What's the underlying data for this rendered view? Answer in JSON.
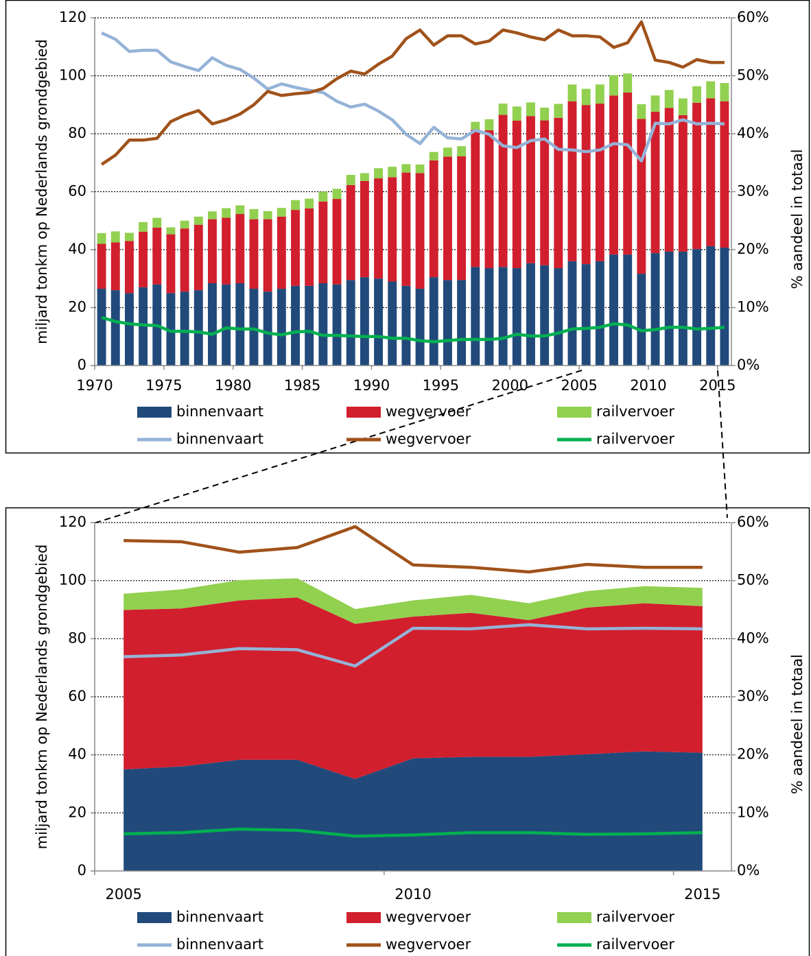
{
  "chart_data": [
    {
      "type": "bar",
      "stacked": true,
      "grid": true,
      "ylabel": "miljard tonkm op Nederlands grondgebied",
      "y2label": "% aandeel in totaal",
      "categories": [
        "1970",
        null,
        null,
        null,
        null,
        "1975",
        null,
        null,
        null,
        null,
        "1980",
        null,
        null,
        null,
        null,
        "1985",
        null,
        null,
        null,
        null,
        "1990",
        null,
        null,
        null,
        null,
        "1995",
        null,
        null,
        null,
        null,
        "2000",
        null,
        null,
        null,
        null,
        "2005",
        null,
        null,
        null,
        null,
        "2010",
        null,
        null,
        null,
        null,
        "2015"
      ],
      "ylim": [
        0,
        120
      ],
      "yticks": [
        0,
        20,
        40,
        60,
        80,
        100,
        120
      ],
      "y2lim": [
        0,
        60
      ],
      "y2ticks": [
        {
          "value": 0,
          "label": "0%"
        },
        {
          "value": 10,
          "label": "10%"
        },
        {
          "value": 20,
          "label": "20%"
        },
        {
          "value": 30,
          "label": "30%"
        },
        {
          "value": 40,
          "label": "40%"
        },
        {
          "value": 50,
          "label": "50%"
        },
        {
          "value": 60,
          "label": "60%"
        }
      ],
      "series": [
        {
          "name": "binnenvaart",
          "type": "bar",
          "color": "#214a7b",
          "values": [
            26.5,
            26,
            25,
            27,
            28,
            25,
            25.5,
            26,
            28.4,
            28,
            28.4,
            26.5,
            25.5,
            26.5,
            27.5,
            27.5,
            28.4,
            28,
            29.5,
            30.5,
            30,
            29,
            27.5,
            26.5,
            30.5,
            29.5,
            29.5,
            34,
            33.6,
            34,
            33.6,
            35.3,
            34.6,
            33.6,
            36,
            35,
            36,
            38.3,
            38.3,
            31.7,
            38.8,
            39.3,
            39.3,
            40.2,
            41.2,
            40.7
          ]
        },
        {
          "name": "wegvervoer",
          "type": "bar",
          "color": "#d11f2e",
          "values": [
            15.5,
            16.5,
            18,
            19.2,
            19.6,
            20.3,
            21.8,
            22.6,
            22.1,
            23,
            23.9,
            24,
            25,
            24.9,
            26.2,
            26.7,
            28.2,
            29.5,
            32.8,
            33.2,
            34.6,
            36,
            39.1,
            39.9,
            40.3,
            42.6,
            42.7,
            47.4,
            47.6,
            52.5,
            50.9,
            50.8,
            50,
            51.9,
            55.2,
            54.9,
            54.4,
            54.9,
            55.9,
            53.4,
            48.8,
            49.6,
            47.1,
            50.5,
            51,
            50.5
          ]
        },
        {
          "name": "railvervoer",
          "type": "bar",
          "color": "#92d050",
          "values": [
            3.7,
            3.8,
            2.8,
            3.3,
            3.4,
            2.4,
            2.7,
            2.8,
            2.7,
            3.3,
            3,
            3.5,
            2.8,
            3,
            3.4,
            3.4,
            3.4,
            3.5,
            3.5,
            2.7,
            3.5,
            3.6,
            2.9,
            3,
            2.9,
            3.1,
            3.5,
            2.7,
            3.8,
            3.9,
            4.9,
            4.7,
            4.4,
            4.8,
            5.8,
            5.6,
            6.6,
            7,
            6.6,
            5.1,
            5.6,
            6.2,
            5.8,
            5.7,
            5.9,
            6.3
          ]
        },
        {
          "name": "binnenvaart",
          "type": "line",
          "axis": "y2",
          "color": "#95b3d7",
          "values": [
            57.4,
            56.3,
            54.2,
            54.4,
            54.4,
            52.4,
            51.6,
            50.9,
            53.1,
            51.8,
            51.1,
            49.6,
            47.7,
            48.6,
            48,
            47.5,
            47.1,
            45.6,
            44.6,
            45.1,
            43.9,
            42.4,
            39.9,
            38.3,
            41.1,
            39.3,
            39.1,
            40.6,
            39.9,
            37.9,
            37.6,
            38.8,
            39.1,
            37.3,
            37.2,
            36.9,
            37.2,
            38.3,
            38.1,
            35.3,
            41.8,
            41.7,
            42.4,
            41.7,
            41.8,
            41.7
          ]
        },
        {
          "name": "wegvervoer",
          "type": "line",
          "axis": "y2",
          "color": "#a0521a",
          "values": [
            34.7,
            36.3,
            38.9,
            38.9,
            39.2,
            42.1,
            43.2,
            44,
            41.7,
            42.4,
            43.4,
            45,
            47.3,
            46.6,
            46.9,
            47.1,
            47.8,
            49.5,
            50.8,
            50.3,
            52,
            53.4,
            56.4,
            57.9,
            55.3,
            56.9,
            56.9,
            55.5,
            56,
            57.9,
            57.4,
            56.7,
            56.2,
            57.9,
            56.9,
            56.9,
            56.7,
            54.9,
            55.7,
            59.3,
            52.7,
            52.3,
            51.5,
            52.8,
            52.3,
            52.3
          ]
        },
        {
          "name": "railvervoer",
          "type": "line",
          "axis": "y2",
          "color": "#00b050",
          "values": [
            8.3,
            7.6,
            7.2,
            7,
            6.9,
            5.9,
            5.9,
            5.8,
            5.4,
            6.5,
            6.3,
            6.3,
            5.6,
            5.3,
            5.8,
            5.9,
            5.2,
            5.2,
            5.1,
            5,
            5,
            4.7,
            4.7,
            4.3,
            4.1,
            4.3,
            4.5,
            4.5,
            4.5,
            4.7,
            5.4,
            5.1,
            5.1,
            5.6,
            6.3,
            6.4,
            6.6,
            7.2,
            7,
            6,
            6.2,
            6.6,
            6.6,
            6.3,
            6.4,
            6.6
          ]
        }
      ]
    },
    {
      "type": "area",
      "stacked": true,
      "grid": true,
      "ylabel": "miljard tonkm op Nederlands grondgebied",
      "y2label": "% aandeel in totaal",
      "categories": [
        "2005",
        null,
        null,
        null,
        null,
        "2010",
        null,
        null,
        null,
        null,
        "2015"
      ],
      "ylim": [
        0,
        120
      ],
      "yticks": [
        0,
        20,
        40,
        60,
        80,
        100,
        120
      ],
      "y2lim": [
        0,
        60
      ],
      "y2ticks": [
        {
          "value": 0,
          "label": "0%"
        },
        {
          "value": 10,
          "label": "10%"
        },
        {
          "value": 20,
          "label": "20%"
        },
        {
          "value": 30,
          "label": "30%"
        },
        {
          "value": 40,
          "label": "40%"
        },
        {
          "value": 50,
          "label": "50%"
        },
        {
          "value": 60,
          "label": "60%"
        }
      ],
      "series": [
        {
          "name": "binnenvaart",
          "type": "area",
          "color": "#214a7b",
          "values": [
            35,
            36,
            38.3,
            38.3,
            31.7,
            38.8,
            39.3,
            39.3,
            40.2,
            41.2,
            40.7
          ]
        },
        {
          "name": "wegvervoer",
          "type": "area",
          "color": "#d11f2e",
          "values": [
            54.9,
            54.4,
            54.9,
            55.9,
            53.4,
            48.8,
            49.6,
            47.1,
            50.5,
            51,
            50.5
          ]
        },
        {
          "name": "railvervoer",
          "type": "area",
          "color": "#92d050",
          "values": [
            5.6,
            6.6,
            7,
            6.6,
            5.1,
            5.6,
            6.2,
            5.8,
            5.7,
            5.9,
            6.3
          ]
        },
        {
          "name": "binnenvaart",
          "type": "line",
          "axis": "y2",
          "color": "#95b3d7",
          "values": [
            36.9,
            37.2,
            38.3,
            38.1,
            35.3,
            41.8,
            41.7,
            42.4,
            41.7,
            41.8,
            41.7
          ]
        },
        {
          "name": "wegvervoer",
          "type": "line",
          "axis": "y2",
          "color": "#a0521a",
          "values": [
            56.9,
            56.7,
            54.9,
            55.7,
            59.3,
            52.7,
            52.3,
            51.5,
            52.8,
            52.3,
            52.3
          ]
        },
        {
          "name": "railvervoer",
          "type": "line",
          "axis": "y2",
          "color": "#00b050",
          "values": [
            6.4,
            6.6,
            7.2,
            7,
            6,
            6.2,
            6.6,
            6.6,
            6.3,
            6.4,
            6.6
          ]
        }
      ]
    }
  ]
}
